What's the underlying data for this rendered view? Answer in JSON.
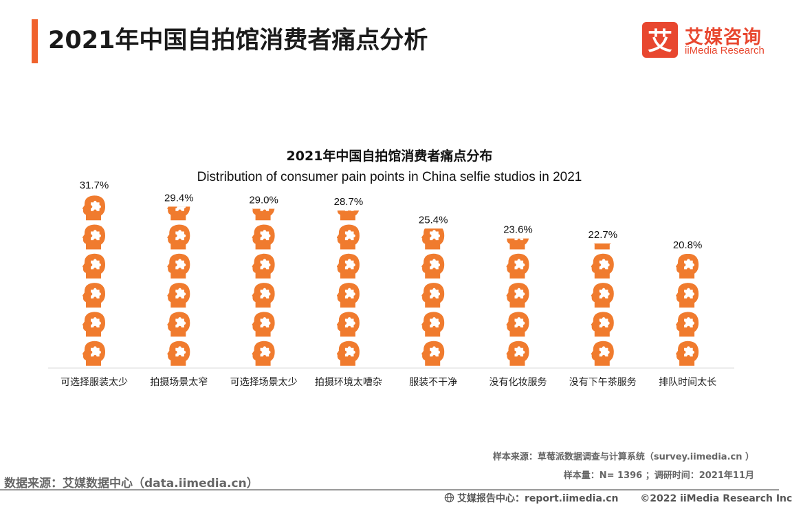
{
  "header": {
    "title": "2021年中国自拍馆消费者痛点分析",
    "accent_color": "#f0622d"
  },
  "logo": {
    "glyph": "艾",
    "name_cn": "艾媒咨询",
    "name_en": "iiMedia Research",
    "brand_color": "#e8472f"
  },
  "chart_data": {
    "type": "bar",
    "title": "2021年中国自拍馆消费者痛点分布",
    "subtitle": "Distribution of consumer pain points in China selfie studios in 2021",
    "categories": [
      "可选择服装太少",
      "拍摄场景太窄",
      "可选择场景太少",
      "拍摄环境太嘈杂",
      "服装不干净",
      "没有化妆服务",
      "没有下午茶服务",
      "排队时间太长"
    ],
    "values": [
      31.7,
      29.4,
      29.0,
      28.7,
      25.4,
      23.6,
      22.7,
      20.8
    ],
    "value_labels": [
      "31.7%",
      "29.4%",
      "29.0%",
      "28.7%",
      "25.4%",
      "23.6%",
      "22.7%",
      "20.8%"
    ],
    "unit": "%",
    "icon": "head-puzzle-icon",
    "icon_value_step": 5.3,
    "bar_color": "#f07b2e",
    "grid": false,
    "legend": "none"
  },
  "sources": {
    "sample_source": "样本来源：草莓派数据调查与计算系统（survey.iimedia.cn ）",
    "sample_size": "样本量：N= 1396 ；调研时间：2021年11月",
    "data_source": "数据来源：艾媒数据中心（data.iimedia.cn）"
  },
  "footer": {
    "report_center": "艾媒报告中心：report.iimedia.cn",
    "copyright": "©2022  iiMedia Research  Inc"
  }
}
